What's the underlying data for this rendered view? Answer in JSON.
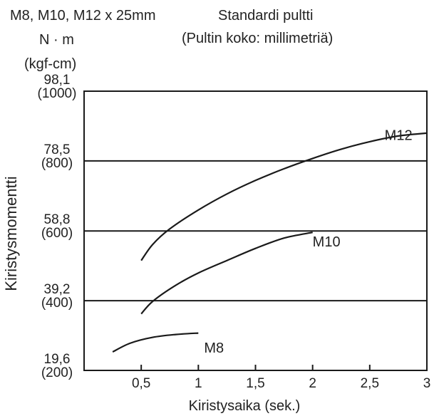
{
  "chart_data": {
    "type": "line",
    "title": "M8, M10, M12 x 25mm",
    "subtitle": "Standardi pultti",
    "subtitle2": "(Pultin koko: millimetriä)",
    "ylabel": "Kiristysmomentti",
    "yunit": "N · m",
    "yunit2": "(kgf-cm)",
    "xlabel": "Kiristysaika (sek.)",
    "xlim": [
      0,
      3
    ],
    "ylim": [
      19.6,
      98.1
    ],
    "xticks": [
      {
        "v": 0.5,
        "label": "0,5"
      },
      {
        "v": 1,
        "label": "1"
      },
      {
        "v": 1.5,
        "label": "1,5"
      },
      {
        "v": 2,
        "label": "2"
      },
      {
        "v": 2.5,
        "label": "2,5"
      },
      {
        "v": 3,
        "label": "3"
      }
    ],
    "yticks": [
      {
        "v": 19.6,
        "label": "19,6",
        "label2": "(200)"
      },
      {
        "v": 39.2,
        "label": "39,2",
        "label2": "(400)"
      },
      {
        "v": 58.8,
        "label": "58,8",
        "label2": "(600)"
      },
      {
        "v": 78.5,
        "label": "78,5",
        "label2": "(800)"
      },
      {
        "v": 98.1,
        "label": "98,1",
        "label2": "(1000)"
      }
    ],
    "grid": "horizontal",
    "series": [
      {
        "name": "M8",
        "x": [
          0.25,
          0.4,
          0.6,
          0.8,
          1.0
        ],
        "y": [
          24.8,
          27.2,
          28.9,
          29.7,
          30.1
        ]
      },
      {
        "name": "M10",
        "x": [
          0.5,
          0.6,
          0.8,
          1.0,
          1.25,
          1.5,
          1.75,
          2.0
        ],
        "y": [
          35.5,
          39.0,
          43.5,
          47.0,
          50.5,
          53.9,
          56.8,
          58.4
        ]
      },
      {
        "name": "M12",
        "x": [
          0.5,
          0.6,
          0.75,
          1.0,
          1.25,
          1.5,
          1.75,
          2.0,
          2.25,
          2.5,
          2.75,
          3.0
        ],
        "y": [
          50.5,
          55.0,
          59.4,
          64.7,
          69.2,
          73.0,
          76.3,
          79.2,
          81.8,
          83.9,
          85.5,
          86.3
        ]
      }
    ]
  }
}
